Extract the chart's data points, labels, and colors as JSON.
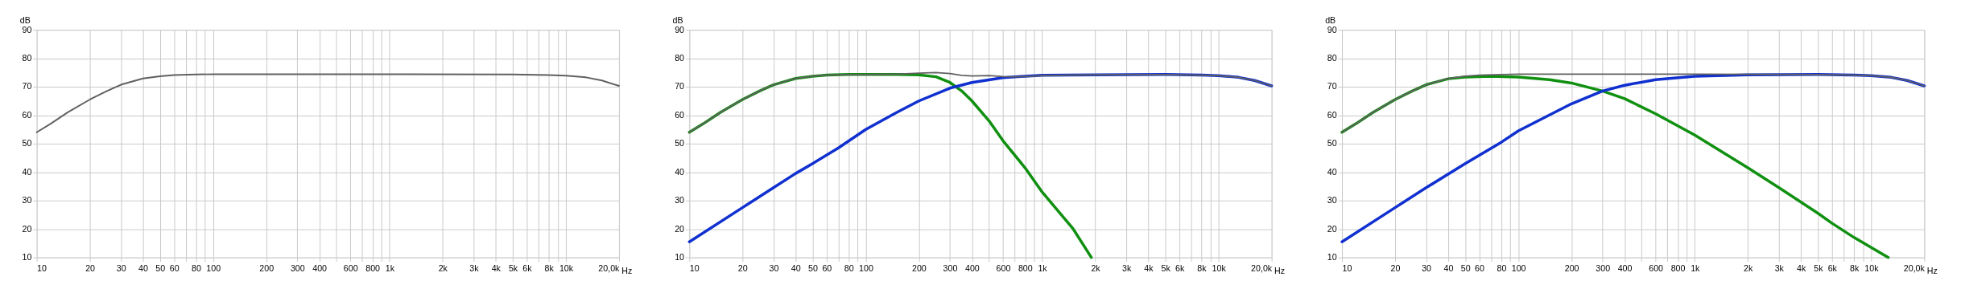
{
  "chart_data": [
    {
      "type": "line",
      "xlabel": "Hz",
      "ylabel": "dB",
      "log": "x",
      "grid": true,
      "legend": false,
      "line_style": "solid",
      "marker": "none",
      "xlim": [
        10,
        20000
      ],
      "ylim": [
        10,
        90
      ],
      "xticks": [
        10,
        20,
        30,
        40,
        50,
        60,
        {
          "value": 70,
          "label": null
        },
        80,
        {
          "value": 90,
          "label": null
        },
        100,
        200,
        300,
        400,
        {
          "value": 500,
          "label": null
        },
        600,
        {
          "value": 700,
          "label": null
        },
        800,
        {
          "value": 900,
          "label": null
        },
        {
          "value": 1000,
          "label": "1k"
        },
        {
          "value": 2000,
          "label": "2k"
        },
        {
          "value": 3000,
          "label": "3k"
        },
        {
          "value": 4000,
          "label": "4k"
        },
        {
          "value": 5000,
          "label": "5k"
        },
        {
          "value": 6000,
          "label": "6k"
        },
        {
          "value": 7000,
          "label": null
        },
        {
          "value": 8000,
          "label": "8k"
        },
        {
          "value": 9000,
          "label": null
        },
        {
          "value": 10000,
          "label": "10k"
        },
        {
          "value": 20000,
          "label": "20,0k"
        }
      ],
      "yticks": [
        10,
        20,
        30,
        40,
        50,
        60,
        70,
        80,
        90
      ],
      "series": [
        {
          "color": "#606060",
          "x": [
            10,
            12,
            15,
            20,
            25,
            30,
            40,
            50,
            60,
            80,
            100,
            1000,
            5000,
            8000,
            10000,
            13000,
            16000,
            20000
          ],
          "values": [
            54,
            57,
            61,
            65.5,
            68.5,
            70.7,
            72.9,
            73.7,
            74.1,
            74.3,
            74.4,
            74.4,
            74.3,
            74.1,
            73.9,
            73.3,
            72.2,
            70.3
          ]
        }
      ]
    },
    {
      "type": "line",
      "xlabel": "Hz",
      "ylabel": "dB",
      "log": "x",
      "grid": true,
      "legend": false,
      "line_style": "solid",
      "marker": "none",
      "xlim": [
        10,
        20000
      ],
      "ylim": [
        10,
        90
      ],
      "xticks": [
        10,
        20,
        30,
        40,
        50,
        60,
        {
          "value": 70,
          "label": null
        },
        80,
        {
          "value": 90,
          "label": null
        },
        100,
        200,
        300,
        400,
        {
          "value": 500,
          "label": null
        },
        600,
        {
          "value": 700,
          "label": null
        },
        800,
        {
          "value": 900,
          "label": null
        },
        {
          "value": 1000,
          "label": "1k"
        },
        {
          "value": 2000,
          "label": "2k"
        },
        {
          "value": 3000,
          "label": "3k"
        },
        {
          "value": 4000,
          "label": "4k"
        },
        {
          "value": 5000,
          "label": "5k"
        },
        {
          "value": 6000,
          "label": "6k"
        },
        {
          "value": 7000,
          "label": null
        },
        {
          "value": 8000,
          "label": "8k"
        },
        {
          "value": 9000,
          "label": null
        },
        {
          "value": 10000,
          "label": "10k"
        },
        {
          "value": 20000,
          "label": "20,0k"
        }
      ],
      "yticks": [
        10,
        20,
        30,
        40,
        50,
        60,
        70,
        80,
        90
      ],
      "series": [
        {
          "color": "#606060",
          "x": [
            10,
            12,
            15,
            20,
            25,
            30,
            40,
            50,
            60,
            80,
            100,
            150,
            200,
            250,
            300,
            350,
            400,
            500,
            600,
            700,
            800,
            1000,
            2000,
            5000,
            8000,
            10000,
            13000,
            16000,
            20000
          ],
          "values": [
            54,
            57,
            61,
            65.5,
            68.5,
            70.7,
            72.9,
            73.7,
            74.1,
            74.3,
            74.3,
            74.4,
            74.8,
            75.0,
            74.6,
            74.0,
            73.8,
            73.9,
            73.6,
            73.5,
            73.6,
            73.9,
            74.2,
            74.3,
            74.1,
            73.9,
            73.3,
            72.2,
            70.3
          ]
        },
        {
          "color": "#109010",
          "x": [
            10,
            12,
            15,
            20,
            25,
            30,
            40,
            50,
            60,
            80,
            100,
            150,
            200,
            250,
            300,
            350,
            400,
            500,
            600,
            800,
            1000,
            1500,
            1900
          ],
          "values": [
            54,
            57,
            61,
            65.5,
            68.5,
            70.7,
            72.9,
            73.7,
            74.1,
            74.3,
            74.3,
            74.3,
            74.2,
            73.5,
            71.5,
            68.5,
            65,
            58,
            51,
            41.5,
            33,
            20,
            10
          ]
        },
        {
          "color": "#1030d0",
          "x": [
            10,
            20,
            30,
            40,
            50,
            70,
            100,
            150,
            200,
            300,
            400,
            600,
            800,
            1000,
            2000,
            5000,
            8000,
            10000,
            13000,
            16000,
            20000
          ],
          "values": [
            15.5,
            27.5,
            34.5,
            39.5,
            43,
            48.5,
            55,
            61,
            65,
            69.5,
            71.5,
            73.2,
            73.7,
            74,
            74.2,
            74.3,
            74.1,
            73.9,
            73.3,
            72.2,
            70.3
          ]
        }
      ]
    },
    {
      "type": "line",
      "xlabel": "Hz",
      "ylabel": "dB",
      "log": "x",
      "grid": true,
      "legend": false,
      "line_style": "solid",
      "marker": "none",
      "xlim": [
        10,
        20000
      ],
      "ylim": [
        10,
        90
      ],
      "xticks": [
        10,
        20,
        30,
        40,
        50,
        60,
        {
          "value": 70,
          "label": null
        },
        80,
        {
          "value": 90,
          "label": null
        },
        100,
        200,
        300,
        400,
        {
          "value": 500,
          "label": null
        },
        600,
        {
          "value": 700,
          "label": null
        },
        800,
        {
          "value": 900,
          "label": null
        },
        {
          "value": 1000,
          "label": "1k"
        },
        {
          "value": 2000,
          "label": "2k"
        },
        {
          "value": 3000,
          "label": "3k"
        },
        {
          "value": 4000,
          "label": "4k"
        },
        {
          "value": 5000,
          "label": "5k"
        },
        {
          "value": 6000,
          "label": "6k"
        },
        {
          "value": 7000,
          "label": null
        },
        {
          "value": 8000,
          "label": "8k"
        },
        {
          "value": 9000,
          "label": null
        },
        {
          "value": 10000,
          "label": "10k"
        },
        {
          "value": 20000,
          "label": "20,0k"
        }
      ],
      "yticks": [
        10,
        20,
        30,
        40,
        50,
        60,
        70,
        80,
        90
      ],
      "series": [
        {
          "color": "#606060",
          "x": [
            10,
            12,
            15,
            20,
            25,
            30,
            40,
            50,
            60,
            80,
            100,
            1000,
            5000,
            8000,
            10000,
            13000,
            16000,
            20000
          ],
          "values": [
            54,
            57,
            61,
            65.5,
            68.5,
            70.7,
            72.9,
            73.7,
            74.1,
            74.3,
            74.4,
            74.4,
            74.3,
            74.1,
            73.9,
            73.3,
            72.2,
            70.3
          ]
        },
        {
          "color": "#109010",
          "x": [
            10,
            12,
            15,
            20,
            25,
            30,
            40,
            50,
            70,
            100,
            150,
            200,
            300,
            400,
            600,
            1000,
            2000,
            3000,
            5000,
            6000,
            8000,
            10000,
            12500
          ],
          "values": [
            54,
            57,
            61,
            65.5,
            68.5,
            70.7,
            72.8,
            73.4,
            73.7,
            73.4,
            72.5,
            71.3,
            68.5,
            65.8,
            60.5,
            53,
            41.5,
            34.5,
            25.5,
            22,
            17,
            13.5,
            10
          ]
        },
        {
          "color": "#1030d0",
          "x": [
            10,
            20,
            30,
            50,
            80,
            100,
            200,
            300,
            400,
            600,
            1000,
            2000,
            5000,
            8000,
            10000,
            13000,
            16000,
            20000
          ],
          "values": [
            15.5,
            27.5,
            34.5,
            43,
            50.5,
            54.5,
            64,
            68.5,
            70.5,
            72.5,
            73.7,
            74.2,
            74.3,
            74.1,
            73.9,
            73.3,
            72.2,
            70.3
          ]
        }
      ]
    }
  ]
}
